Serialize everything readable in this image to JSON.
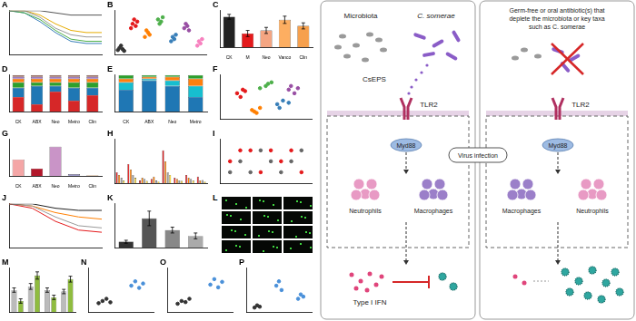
{
  "chart_data": [
    {
      "title": "A",
      "type": "line",
      "x": [
        0,
        2,
        4,
        6,
        8,
        10,
        12
      ],
      "xlim": [
        0,
        12
      ],
      "ylim": [
        0,
        100
      ],
      "grid": false,
      "tick_labels": false,
      "series": [
        {
          "color": "#555555",
          "values": [
            100,
            100,
            100,
            95,
            90,
            90,
            90
          ]
        },
        {
          "color": "#999999",
          "values": [
            100,
            100,
            85,
            60,
            45,
            40,
            40
          ]
        },
        {
          "color": "#4daf4a",
          "values": [
            100,
            95,
            80,
            55,
            35,
            30,
            30
          ]
        },
        {
          "color": "#377eb8",
          "values": [
            100,
            95,
            75,
            50,
            30,
            25,
            25
          ]
        },
        {
          "color": "#e6ab02",
          "values": [
            100,
            100,
            90,
            70,
            55,
            50,
            50
          ]
        }
      ]
    },
    {
      "title": "B",
      "type": "strip",
      "categories": [
        null,
        null,
        null,
        null,
        null,
        null,
        null
      ],
      "ylim": [
        0,
        100
      ],
      "grid": false,
      "tick_labels": false,
      "colors": [
        "#333333",
        "#e41a1c",
        "#ff7f00",
        "#4daf4a",
        "#377eb8",
        "#984ea3",
        "#f781bf"
      ],
      "points": [
        [
          10,
          15,
          20,
          12,
          8
        ],
        [
          60,
          70,
          80,
          65,
          75
        ],
        [
          40,
          55,
          50,
          45
        ],
        [
          80,
          70,
          75,
          85
        ],
        [
          30,
          40,
          35,
          45
        ],
        [
          60,
          70,
          65,
          55
        ],
        [
          20,
          30,
          25,
          35
        ]
      ]
    },
    {
      "title": "C",
      "type": "bar",
      "categories": [
        "CK",
        "M",
        "Neo",
        "Vanco",
        "Clin"
      ],
      "ylim": [
        0,
        1.2
      ],
      "grid": false,
      "tick_labels": "x",
      "values": [
        1.0,
        0.45,
        0.55,
        0.9,
        0.7
      ],
      "errors": [
        0.08,
        0.1,
        0.1,
        0.12,
        0.1
      ],
      "colors": [
        "#222222",
        "#e41a1c",
        "#f4a582",
        "#fdae61",
        "#f6a04d"
      ]
    },
    {
      "title": "D",
      "type": "bar",
      "stacked": true,
      "categories": [
        "CK",
        "ABX",
        "Neo",
        "Metro",
        "Clin"
      ],
      "ylim": [
        0,
        100
      ],
      "grid": false,
      "tick_labels": "x",
      "series": [
        {
          "color": "#d62728",
          "values": [
            40,
            20,
            55,
            30,
            45
          ]
        },
        {
          "color": "#1f77b4",
          "values": [
            25,
            50,
            15,
            35,
            20
          ]
        },
        {
          "color": "#2ca02c",
          "values": [
            15,
            10,
            10,
            15,
            15
          ]
        },
        {
          "color": "#ff7f0e",
          "values": [
            10,
            10,
            10,
            10,
            10
          ]
        },
        {
          "color": "#9467bd",
          "values": [
            5,
            5,
            5,
            5,
            5
          ]
        },
        {
          "color": "#8c564b",
          "values": [
            5,
            5,
            5,
            5,
            5
          ]
        }
      ]
    },
    {
      "title": "E",
      "type": "bar",
      "stacked": true,
      "categories": [
        "CK",
        "ABX",
        "Neo",
        "Metro"
      ],
      "ylim": [
        0,
        100
      ],
      "grid": false,
      "tick_labels": "x",
      "series": [
        {
          "color": "#1f77b4",
          "values": [
            60,
            85,
            70,
            40
          ]
        },
        {
          "color": "#17becf",
          "values": [
            20,
            5,
            15,
            30
          ]
        },
        {
          "color": "#ff7f0e",
          "values": [
            10,
            5,
            10,
            20
          ]
        },
        {
          "color": "#2ca02c",
          "values": [
            10,
            5,
            5,
            10
          ]
        }
      ]
    },
    {
      "title": "F",
      "type": "scatter",
      "xlim": [
        -0.4,
        0.4
      ],
      "ylim": [
        -0.3,
        0.3
      ],
      "grid": false,
      "tick_labels": false,
      "series": [
        {
          "color": "#e41a1c",
          "x": [
            -0.25,
            -0.2,
            -0.22,
            -0.18
          ],
          "values": [
            0.05,
            0.1,
            0.0,
            0.08
          ]
        },
        {
          "color": "#377eb8",
          "x": [
            0.1,
            0.15,
            0.12,
            0.2
          ],
          "values": [
            -0.1,
            -0.05,
            -0.15,
            -0.08
          ]
        },
        {
          "color": "#4daf4a",
          "x": [
            0.0,
            0.05,
            -0.05,
            0.02
          ],
          "values": [
            0.15,
            0.2,
            0.12,
            0.18
          ]
        },
        {
          "color": "#984ea3",
          "x": [
            0.2,
            0.25,
            0.28,
            0.22
          ],
          "values": [
            0.1,
            0.05,
            0.12,
            0.15
          ]
        },
        {
          "color": "#ff7f00",
          "x": [
            -0.1,
            -0.05,
            -0.12,
            -0.08
          ],
          "values": [
            -0.2,
            -0.15,
            -0.18,
            -0.22
          ]
        }
      ]
    },
    {
      "title": "G",
      "type": "bar",
      "categories": [
        "CK",
        "ABX",
        "Neo",
        "Metro",
        "Clin"
      ],
      "ylim": [
        0,
        100
      ],
      "grid": false,
      "tick_labels": "x",
      "values": [
        45,
        20,
        80,
        5,
        2
      ],
      "colors": [
        "#f4a6a6",
        "#b2182b",
        "#c994c7",
        "#9e9ac8",
        "#fdd0a2"
      ]
    },
    {
      "title": "H",
      "type": "bar",
      "categories": [
        null,
        null,
        null,
        null,
        null,
        null,
        null,
        null
      ],
      "ylim": [
        0,
        80
      ],
      "grid": false,
      "tick_labels": false,
      "series": [
        {
          "color": "#e41a1c",
          "values": [
            20,
            35,
            5,
            8,
            60,
            10,
            15,
            12
          ]
        },
        {
          "color": "#ff7f00",
          "values": [
            15,
            25,
            10,
            12,
            40,
            8,
            10,
            5
          ]
        },
        {
          "color": "#999999",
          "values": [
            10,
            15,
            8,
            5,
            20,
            5,
            8,
            6
          ]
        },
        {
          "color": "#ffd92f",
          "values": [
            5,
            10,
            4,
            3,
            15,
            4,
            5,
            3
          ]
        }
      ]
    },
    {
      "title": "I",
      "type": "scatter",
      "xlim": [
        0,
        9
      ],
      "ylim": [
        0,
        4
      ],
      "grid": false,
      "tick_labels": false,
      "series": [
        {
          "color": "#666666",
          "x": [
            1,
            2,
            3,
            4,
            5,
            6,
            7,
            8
          ],
          "values": [
            1,
            2,
            1,
            3,
            2,
            1,
            2,
            3
          ]
        },
        {
          "color": "#e41a1c",
          "x": [
            1,
            2,
            3,
            4,
            5,
            6,
            7,
            8
          ],
          "values": [
            2,
            3,
            3,
            1,
            3,
            2,
            3,
            1
          ]
        }
      ]
    },
    {
      "title": "J",
      "type": "line",
      "x": [
        0,
        24,
        48,
        72,
        96
      ],
      "xlim": [
        0,
        96
      ],
      "ylim": [
        0,
        100
      ],
      "grid": false,
      "tick_labels": false,
      "series": [
        {
          "color": "#222222",
          "values": [
            100,
            100,
            90,
            85,
            85
          ]
        },
        {
          "color": "#999999",
          "values": [
            100,
            95,
            70,
            50,
            45
          ]
        },
        {
          "color": "#e41a1c",
          "values": [
            100,
            90,
            60,
            40,
            35
          ]
        },
        {
          "color": "#ff7f00",
          "values": [
            100,
            95,
            80,
            70,
            65
          ]
        }
      ]
    },
    {
      "title": "K",
      "type": "bar",
      "categories": [
        null,
        null,
        null,
        null
      ],
      "ylim": [
        0,
        1.5
      ],
      "grid": false,
      "tick_labels": false,
      "values": [
        0.2,
        1.0,
        0.6,
        0.4
      ],
      "errors": [
        0.05,
        0.25,
        0.1,
        0.1
      ],
      "colors": [
        "#333333",
        "#555555",
        "#888888",
        "#aaaaaa"
      ]
    },
    {
      "title": "M",
      "type": "bar",
      "categories": [
        null,
        null,
        null,
        null
      ],
      "ylim": [
        0,
        6
      ],
      "grid": false,
      "tick_labels": false,
      "series": [
        {
          "color": "#bbbbbb",
          "values": [
            3,
            3.5,
            3,
            2.8
          ],
          "errors": [
            0.3,
            0.4,
            0.3,
            0.3
          ]
        },
        {
          "color": "#8fbc3f",
          "values": [
            1.5,
            5,
            2,
            4.5
          ],
          "errors": [
            0.3,
            0.5,
            0.3,
            0.4
          ]
        }
      ]
    },
    {
      "title": "N",
      "type": "strip",
      "categories": [
        null,
        null
      ],
      "ylim": [
        0,
        10
      ],
      "grid": false,
      "tick_labels": false,
      "colors": [
        "#333333",
        "#4a90d9"
      ],
      "points": [
        [
          2,
          2.5,
          3,
          2.2
        ],
        [
          6,
          7,
          5.5,
          6.5
        ]
      ]
    },
    {
      "title": "O",
      "type": "strip",
      "categories": [
        null,
        null
      ],
      "ylim": [
        0,
        8
      ],
      "grid": false,
      "tick_labels": false,
      "colors": [
        "#333333",
        "#4a90d9"
      ],
      "points": [
        [
          1.5,
          2,
          1.8,
          2.4
        ],
        [
          5,
          6,
          4.5,
          5.5
        ]
      ]
    },
    {
      "title": "P",
      "type": "strip",
      "categories": [
        null,
        null,
        null
      ],
      "ylim": [
        0,
        10
      ],
      "grid": false,
      "tick_labels": false,
      "colors": [
        "#333333",
        "#4a90d9",
        "#4a90d9"
      ],
      "points": [
        [
          1,
          1.5,
          1.2
        ],
        [
          6,
          7,
          5
        ],
        [
          3,
          4,
          3.5
        ]
      ]
    }
  ],
  "image_panel": {
    "title": "L"
  },
  "diagram": {
    "left": {
      "top_labels": [
        "Microbiota",
        "C. somerae"
      ],
      "signal": "CsEPS",
      "receptor": "TLR2",
      "adaptor": "Myd88",
      "cells": [
        "Neutrophils",
        "Macrophages"
      ],
      "output": "Type I IFN"
    },
    "center": "Virus infection",
    "right": {
      "caption": [
        "Germ-free or oral antibiotic(s) that",
        "deplete the microbiota or key taxa",
        "such as C. somerae"
      ],
      "receptor": "TLR2",
      "adaptor": "Myd88",
      "cells": [
        "Macrophages",
        "Neutrophils"
      ]
    }
  }
}
